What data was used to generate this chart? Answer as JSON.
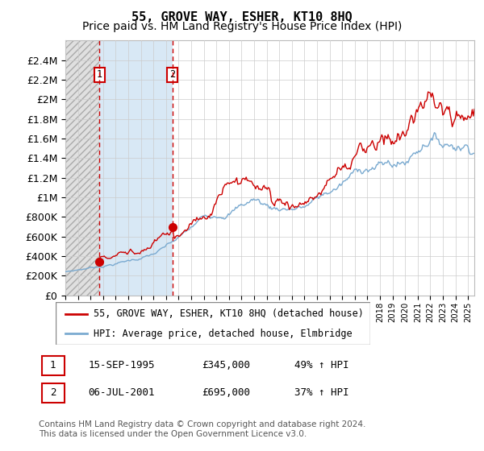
{
  "title": "55, GROVE WAY, ESHER, KT10 8HQ",
  "subtitle": "Price paid vs. HM Land Registry's House Price Index (HPI)",
  "footer": "Contains HM Land Registry data © Crown copyright and database right 2024.\nThis data is licensed under the Open Government Licence v3.0.",
  "legend_line1": "55, GROVE WAY, ESHER, KT10 8HQ (detached house)",
  "legend_line2": "HPI: Average price, detached house, Elmbridge",
  "sale1_date": "15-SEP-1995",
  "sale1_price": "£345,000",
  "sale1_hpi": "49% ↑ HPI",
  "sale2_date": "06-JUL-2001",
  "sale2_price": "£695,000",
  "sale2_hpi": "37% ↑ HPI",
  "sale1_year": 1995.71,
  "sale1_value": 345000,
  "sale2_year": 2001.5,
  "sale2_value": 695000,
  "red_line_color": "#cc0000",
  "blue_line_color": "#7aaad0",
  "dashed_line_color": "#cc0000",
  "ylim": [
    0,
    2600000
  ],
  "yticks": [
    0,
    200000,
    400000,
    600000,
    800000,
    1000000,
    1200000,
    1400000,
    1600000,
    1800000,
    2000000,
    2200000,
    2400000
  ],
  "ytick_labels": [
    "£0",
    "£200K",
    "£400K",
    "£600K",
    "£800K",
    "£1M",
    "£1.2M",
    "£1.4M",
    "£1.6M",
    "£1.8M",
    "£2M",
    "£2.2M",
    "£2.4M"
  ],
  "xlim_start": 1993.0,
  "xlim_end": 2025.5,
  "bg_hatch_end": 1995.71,
  "bg_sale1_end": 2001.5,
  "title_fontsize": 11,
  "subtitle_fontsize": 10,
  "axis_fontsize": 9
}
